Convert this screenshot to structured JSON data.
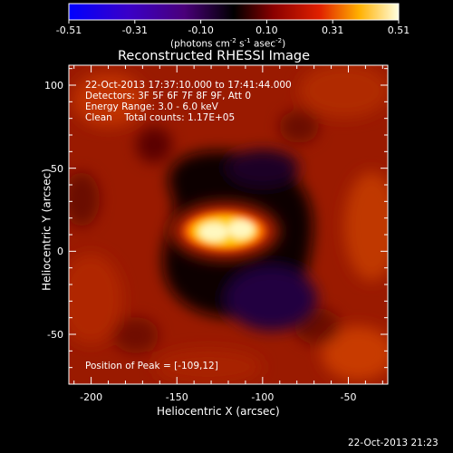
{
  "colorbar": {
    "tick_labels": [
      "-0.51",
      "-0.31",
      "-0.10",
      "0.10",
      "0.31",
      "0.51"
    ],
    "units_prefix": "(photons cm",
    "units_exp1": "-2",
    "units_mid1": " s",
    "units_exp2": "-1",
    "units_mid2": " asec",
    "units_exp3": "-2",
    "units_suffix": ")",
    "range": [
      -0.51,
      0.51
    ]
  },
  "title": "Reconstructed RHESSI Image",
  "annotations": {
    "time_range": "22-Oct-2013 17:37:10.000 to 17:41:44.000",
    "detectors": "Detectors: 3F 5F 6F 7F 8F 9F, Att 0",
    "energy": "Energy Range: 3.0 - 6.0 keV",
    "clean": "Clean    Total counts: 1.17E+05",
    "peak": "Position of Peak = [-109,12]"
  },
  "axes": {
    "xlabel": "Heliocentric X (arcsec)",
    "ylabel": "Heliocentric Y (arcsec)",
    "xticks": [
      "-200",
      "-150",
      "-100",
      "-50"
    ],
    "yticks": [
      "100",
      "50",
      "0",
      "-50"
    ],
    "xtick_values": [
      -200,
      -150,
      -100,
      -50
    ],
    "ytick_values": [
      100,
      50,
      0,
      -50
    ],
    "xlim": [
      -213,
      -27
    ],
    "ylim": [
      -80,
      112
    ]
  },
  "peak_position": [
    -109,
    12
  ],
  "footer_timestamp": "22-Oct-2013 21:23"
}
